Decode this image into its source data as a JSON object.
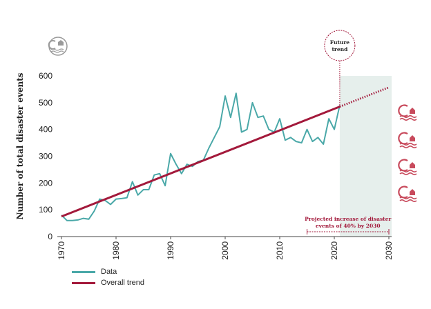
{
  "chart_data": {
    "type": "line",
    "ylabel": "Number of total disaster events",
    "xlim": [
      1970,
      2030
    ],
    "ylim": [
      0,
      600
    ],
    "x_ticks": [
      "1970",
      "1980",
      "1990",
      "2000",
      "2010",
      "2020",
      "2030"
    ],
    "y_ticks": [
      "0",
      "100",
      "200",
      "300",
      "400",
      "500",
      "600"
    ],
    "grid": false,
    "series": [
      {
        "name": "Data",
        "color": "#4aa8a8",
        "x": [
          1970,
          1971,
          1972,
          1973,
          1974,
          1975,
          1976,
          1977,
          1978,
          1979,
          1980,
          1981,
          1982,
          1983,
          1984,
          1985,
          1986,
          1987,
          1988,
          1989,
          1990,
          1991,
          1992,
          1993,
          1994,
          1995,
          1996,
          1997,
          1998,
          1999,
          2000,
          2001,
          2002,
          2003,
          2004,
          2005,
          2006,
          2007,
          2008,
          2009,
          2010,
          2011,
          2012,
          2013,
          2014,
          2015,
          2016,
          2017,
          2018,
          2019,
          2020,
          2021
        ],
        "y": [
          80,
          60,
          60,
          62,
          68,
          65,
          95,
          140,
          135,
          120,
          140,
          142,
          145,
          205,
          155,
          175,
          175,
          230,
          235,
          190,
          310,
          270,
          235,
          270,
          262,
          280,
          285,
          330,
          370,
          410,
          525,
          445,
          535,
          390,
          400,
          500,
          445,
          450,
          400,
          390,
          440,
          360,
          370,
          355,
          350,
          400,
          355,
          370,
          345,
          440,
          400,
          490
        ]
      },
      {
        "name": "Overall trend",
        "color": "#a3193b",
        "x": [
          1970,
          2021
        ],
        "y": [
          75,
          485
        ],
        "projection": {
          "x": [
            2021,
            2030
          ],
          "y": [
            485,
            557
          ]
        }
      }
    ],
    "future_region": [
      2021,
      2030
    ],
    "annotations": {
      "future_trend": [
        "Future",
        "trend"
      ],
      "projection": [
        "Projected increase of disaster",
        "events of 40% by 2030"
      ]
    }
  }
}
